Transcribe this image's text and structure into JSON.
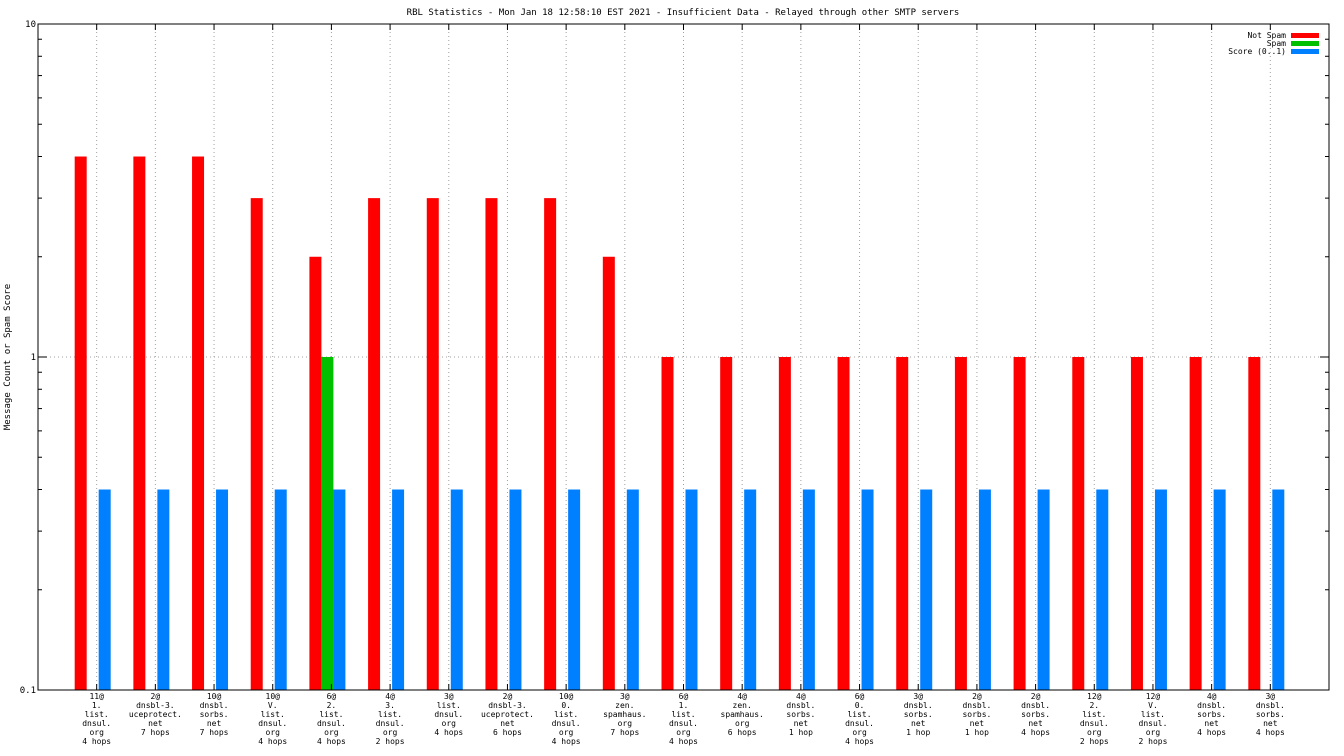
{
  "chart_data": {
    "type": "bar",
    "title": "RBL Statistics - Mon Jan 18 12:58:10 EST 2021 - Insufficient Data - Relayed through other SMTP servers",
    "xlabel": "",
    "ylabel": "Message Count or Spam Score",
    "yscale": "log",
    "ylim": [
      0.1,
      10
    ],
    "yticks": [
      "0.1",
      "1",
      "10"
    ],
    "grid": true,
    "legend_position": "top-right",
    "categories": [
      [
        "11@",
        "1.",
        "list.",
        "dnsul.",
        "org",
        "4 hops"
      ],
      [
        "2@",
        "dnsbl-3.",
        "uceprotect.",
        "net",
        "7 hops"
      ],
      [
        "10@",
        "dnsbl.",
        "sorbs.",
        "net",
        "7 hops"
      ],
      [
        "10@",
        "V.",
        "list.",
        "dnsul.",
        "org",
        "4 hops"
      ],
      [
        "6@",
        "2.",
        "list.",
        "dnsul.",
        "org",
        "4 hops"
      ],
      [
        "4@",
        "3.",
        "list.",
        "dnsul.",
        "org",
        "2 hops"
      ],
      [
        "3@",
        "list.",
        "dnsul.",
        "org",
        "4 hops"
      ],
      [
        "2@",
        "dnsbl-3.",
        "uceprotect.",
        "net",
        "6 hops"
      ],
      [
        "10@",
        "0.",
        "list.",
        "dnsul.",
        "org",
        "4 hops"
      ],
      [
        "3@",
        "zen.",
        "spamhaus.",
        "org",
        "7 hops"
      ],
      [
        "6@",
        "1.",
        "list.",
        "dnsul.",
        "org",
        "4 hops"
      ],
      [
        "4@",
        "zen.",
        "spamhaus.",
        "org",
        "6 hops"
      ],
      [
        "4@",
        "dnsbl.",
        "sorbs.",
        "net",
        "1 hop"
      ],
      [
        "6@",
        "0.",
        "list.",
        "dnsul.",
        "org",
        "4 hops"
      ],
      [
        "3@",
        "dnsbl.",
        "sorbs.",
        "net",
        "1 hop"
      ],
      [
        "2@",
        "dnsbl.",
        "sorbs.",
        "net",
        "1 hop"
      ],
      [
        "2@",
        "dnsbl.",
        "sorbs.",
        "net",
        "4 hops"
      ],
      [
        "12@",
        "2.",
        "list.",
        "dnsul.",
        "org",
        "2 hops"
      ],
      [
        "12@",
        "V.",
        "list.",
        "dnsul.",
        "org",
        "2 hops"
      ],
      [
        "4@",
        "dnsbl.",
        "sorbs.",
        "net",
        "4 hops"
      ],
      [
        "3@",
        "dnsbl.",
        "sorbs.",
        "net",
        "4 hops"
      ]
    ],
    "series": [
      {
        "name": "Not Spam",
        "color": "#ff0000",
        "values": [
          4,
          4,
          4,
          3,
          2,
          3,
          3,
          3,
          3,
          2,
          1,
          1,
          1,
          1,
          1,
          1,
          1,
          1,
          1,
          1,
          1
        ]
      },
      {
        "name": "Spam",
        "color": "#00c000",
        "values": [
          0,
          0,
          0,
          0,
          1,
          0,
          0,
          0,
          0,
          0,
          0,
          0,
          0,
          0,
          0,
          0,
          0,
          0,
          0,
          0,
          0
        ]
      },
      {
        "name": "Score (0..1)",
        "color": "#0080ff",
        "values": [
          0.4,
          0.4,
          0.4,
          0.4,
          0.4,
          0.4,
          0.4,
          0.4,
          0.4,
          0.4,
          0.4,
          0.4,
          0.4,
          0.4,
          0.4,
          0.4,
          0.4,
          0.4,
          0.4,
          0.4,
          0.4
        ]
      }
    ]
  }
}
